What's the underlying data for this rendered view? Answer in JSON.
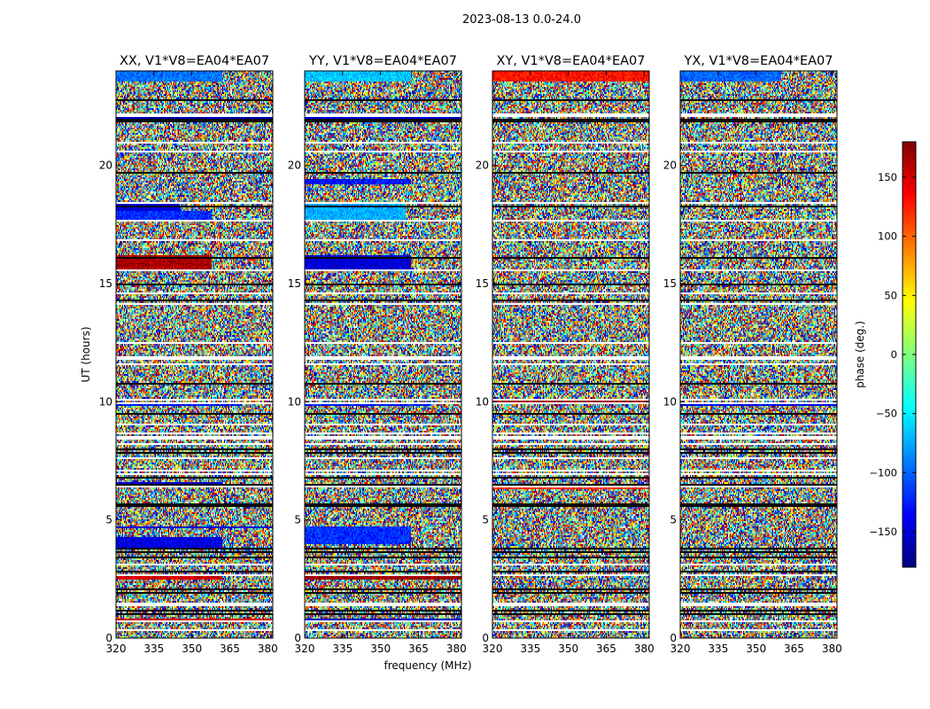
{
  "figure": {
    "suptitle": "2023-08-13 0.0-24.0",
    "xlabel": "frequency (MHz)",
    "ylabel": "UT (hours)"
  },
  "colorbar": {
    "label": "phase (deg.)",
    "range": [
      -180,
      180
    ],
    "ticks": [
      150,
      100,
      50,
      0,
      -50,
      -100,
      -150
    ],
    "tick_labels": [
      "150",
      "100",
      "50",
      "0",
      "−50",
      "−100",
      "−150"
    ],
    "colormap": [
      "#00007f",
      "#0000ff",
      "#007fff",
      "#00ffff",
      "#7fff7f",
      "#ffff00",
      "#ff7f00",
      "#ff0000",
      "#7f0000"
    ]
  },
  "chart_data": [
    {
      "type": "heatmap",
      "title": "XX, V1*V8=EA04*EA07",
      "x_range": [
        320,
        382
      ],
      "y_range": [
        0,
        24
      ],
      "x_ticks": [
        320,
        335,
        350,
        365,
        380
      ],
      "y_ticks": [
        0,
        5,
        10,
        15,
        20
      ],
      "value": "phase (deg.)",
      "coherent_bands": [
        {
          "t": [
            23.55,
            24.0
          ],
          "phase": -95,
          "fmax": 362
        },
        {
          "t": [
            21.8,
            22.05
          ],
          "phase": -160,
          "fmax": 382
        },
        {
          "t": [
            18.1,
            18.4
          ],
          "phase": -150,
          "fmax": 345
        },
        {
          "t": [
            17.6,
            18.1
          ],
          "phase": -120,
          "fmax": 358
        },
        {
          "t": [
            15.6,
            16.2
          ],
          "phase": 165,
          "fmax": 358
        },
        {
          "t": [
            9.85,
            10.0
          ],
          "phase": -130,
          "fmax": 370
        },
        {
          "t": [
            6.35,
            6.6
          ],
          "phase": -150,
          "fmax": 362
        },
        {
          "t": [
            4.65,
            4.75
          ],
          "phase": -150,
          "fmax": 382
        },
        {
          "t": [
            3.8,
            4.3
          ],
          "phase": -145,
          "fmax": 362
        },
        {
          "t": [
            2.5,
            2.7
          ],
          "phase": 150,
          "fmax": 362
        },
        {
          "t": [
            0.7,
            0.85
          ],
          "phase": 150,
          "fmax": 382
        }
      ]
    },
    {
      "type": "heatmap",
      "title": "YY, V1*V8=EA04*EA07",
      "x_range": [
        320,
        382
      ],
      "y_range": [
        0,
        24
      ],
      "x_ticks": [
        320,
        335,
        350,
        365,
        380
      ],
      "y_ticks": [
        0,
        5,
        10,
        15,
        20
      ],
      "value": "phase (deg.)",
      "coherent_bands": [
        {
          "t": [
            23.55,
            24.0
          ],
          "phase": -65,
          "fmax": 362
        },
        {
          "t": [
            21.8,
            22.05
          ],
          "phase": -150,
          "fmax": 382
        },
        {
          "t": [
            19.2,
            19.4
          ],
          "phase": -130,
          "fmax": 362
        },
        {
          "t": [
            17.6,
            18.4
          ],
          "phase": -75,
          "fmax": 360
        },
        {
          "t": [
            15.6,
            16.2
          ],
          "phase": -150,
          "fmax": 362
        },
        {
          "t": [
            9.85,
            10.0
          ],
          "phase": -130,
          "fmax": 370
        },
        {
          "t": [
            6.35,
            6.55
          ],
          "phase": -90,
          "fmax": 382
        },
        {
          "t": [
            4.0,
            4.7
          ],
          "phase": -120,
          "fmax": 362
        },
        {
          "t": [
            2.5,
            2.7
          ],
          "phase": 170,
          "fmax": 382
        },
        {
          "t": [
            0.7,
            0.85
          ],
          "phase": -160,
          "fmax": 382
        }
      ]
    },
    {
      "type": "heatmap",
      "title": "XY, V1*V8=EA04*EA07",
      "x_range": [
        320,
        382
      ],
      "y_range": [
        0,
        24
      ],
      "x_ticks": [
        320,
        335,
        350,
        365,
        380
      ],
      "y_ticks": [
        0,
        5,
        10,
        15,
        20
      ],
      "value": "phase (deg.)",
      "coherent_bands": [
        {
          "t": [
            23.55,
            24.0
          ],
          "phase": 130,
          "fmax": 382
        },
        {
          "t": [
            10.0,
            10.15
          ],
          "phase": 170,
          "fmax": 382
        },
        {
          "t": [
            6.3,
            6.5
          ],
          "phase": 120,
          "fmax": 382
        }
      ]
    },
    {
      "type": "heatmap",
      "title": "YX, V1*V8=EA04*EA07",
      "x_range": [
        320,
        382
      ],
      "y_range": [
        0,
        24
      ],
      "x_ticks": [
        320,
        335,
        350,
        365,
        380
      ],
      "y_ticks": [
        0,
        5,
        10,
        15,
        20
      ],
      "value": "phase (deg.)",
      "coherent_bands": [
        {
          "t": [
            23.55,
            24.0
          ],
          "phase": -100,
          "fmax": 360
        },
        {
          "t": [
            9.85,
            10.0
          ],
          "phase": -140,
          "fmax": 382
        }
      ]
    }
  ]
}
